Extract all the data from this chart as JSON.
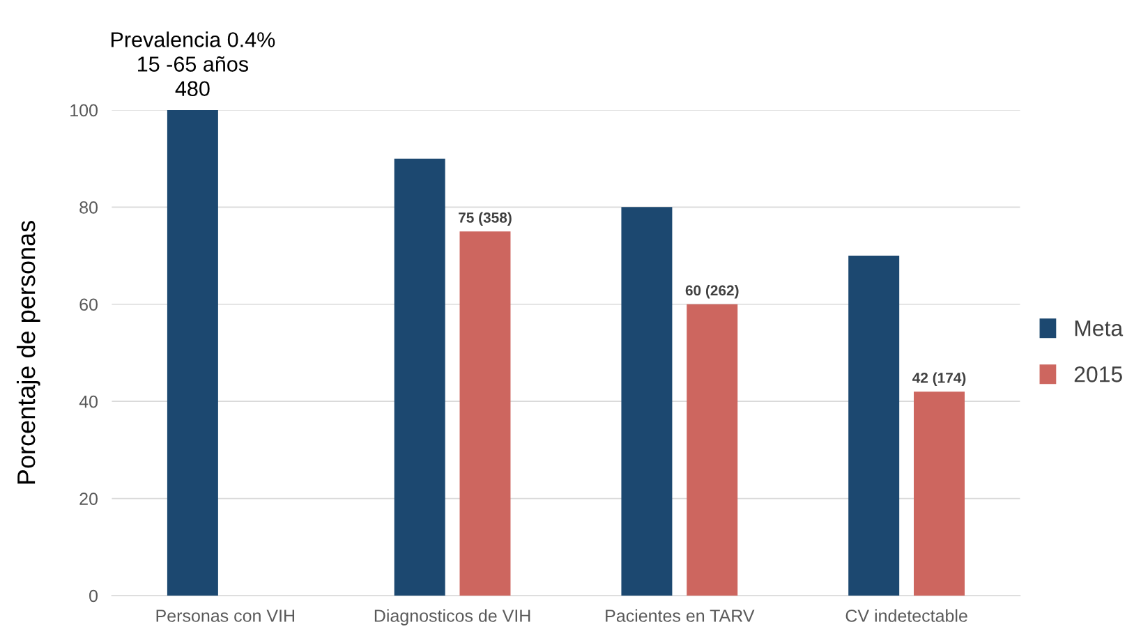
{
  "chart_data": {
    "type": "bar",
    "ylabel": "Porcentaje de personas",
    "categories": [
      "Personas con VIH",
      "Diagnosticos de VIH",
      "Pacientes en TARV",
      "CV indetectable"
    ],
    "series": [
      {
        "name": "Meta",
        "color": "#1c4870",
        "values": [
          100,
          90,
          80,
          70
        ]
      },
      {
        "name": "2015",
        "color": "#cd665f",
        "values": [
          null,
          75,
          60,
          42
        ],
        "value_labels": [
          null,
          "75 (358)",
          "60 (262)",
          "42 (174)"
        ]
      }
    ],
    "annotations": [
      "Prevalencia 0.4%\n15 -65 años\n480"
    ],
    "ylim": [
      0,
      100
    ],
    "yticks": [
      0,
      20,
      40,
      60,
      80,
      100
    ],
    "grid": "y",
    "legend": "right"
  }
}
